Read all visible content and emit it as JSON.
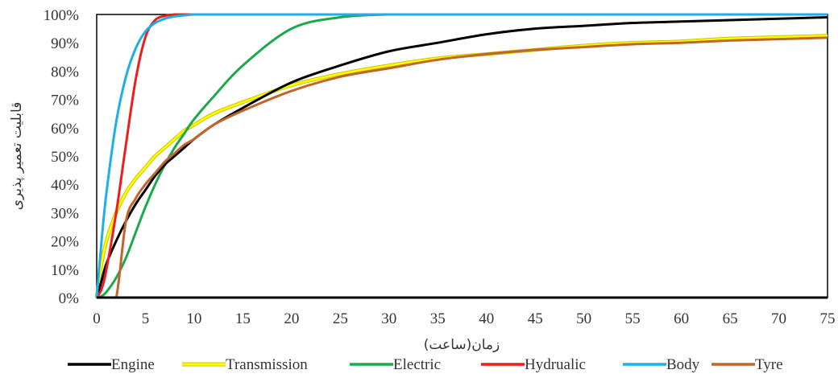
{
  "chart_data": {
    "type": "line",
    "title": "",
    "xlabel": "زمان(ساعت)",
    "ylabel": "قابلیت تعمیر پذیری",
    "xlim": [
      0,
      75
    ],
    "ylim": [
      0,
      100
    ],
    "x_ticks": [
      0,
      5,
      10,
      15,
      20,
      25,
      30,
      35,
      40,
      45,
      50,
      55,
      60,
      65,
      70,
      75
    ],
    "x_tick_labels": [
      "0",
      "5",
      "10",
      "15",
      "20",
      "25",
      "30",
      "35",
      "40",
      "45",
      "50",
      "55",
      "60",
      "65",
      "70",
      "75"
    ],
    "y_ticks": [
      0,
      10,
      20,
      30,
      40,
      50,
      60,
      70,
      80,
      90,
      100
    ],
    "y_tick_labels": [
      "0%",
      "10%",
      "20%",
      "30%",
      "40%",
      "50%",
      "60%",
      "70%",
      "80%",
      "90%",
      "100%"
    ],
    "grid": false,
    "legend_position": "bottom",
    "x": [
      0,
      0.5,
      1,
      2,
      3,
      4,
      5,
      6,
      7,
      8,
      9,
      10,
      12,
      15,
      20,
      25,
      30,
      35,
      40,
      45,
      50,
      55,
      60,
      65,
      70,
      75
    ],
    "series": [
      {
        "name": "Engine",
        "color": "#000000",
        "values": [
          0,
          6,
          12,
          20,
          27,
          33,
          38,
          43,
          47,
          50,
          53,
          56,
          61,
          67,
          76,
          82,
          87,
          90,
          93,
          95,
          96,
          97,
          97.5,
          98,
          98.5,
          99
        ]
      },
      {
        "name": "Transmission",
        "color": "#ffff00",
        "values": [
          0,
          12,
          20,
          30,
          37,
          42,
          46,
          50,
          53,
          56,
          59,
          61,
          65,
          69,
          75,
          79,
          82,
          84.5,
          86,
          87.5,
          89,
          90,
          90.5,
          91.5,
          92,
          92.5
        ]
      },
      {
        "name": "Electric",
        "color": "#1ea84c",
        "values": [
          0,
          0.5,
          2,
          7,
          14,
          23,
          32,
          40,
          47,
          53,
          58,
          63,
          71,
          82,
          95,
          99,
          100,
          100,
          100,
          100,
          100,
          100,
          100,
          100,
          100,
          100
        ]
      },
      {
        "name": "Hydrualic",
        "color": "#ee1c1c",
        "values": [
          0,
          3,
          10,
          30,
          54,
          77,
          92,
          98,
          99.5,
          100,
          100,
          100,
          100,
          100,
          100,
          100,
          100,
          100,
          100,
          100,
          100,
          100,
          100,
          100,
          100,
          100
        ]
      },
      {
        "name": "Body",
        "color": "#1eaee8",
        "values": [
          0,
          20,
          37,
          62,
          78,
          88,
          94,
          97,
          98.5,
          99.3,
          99.7,
          100,
          100,
          100,
          100,
          100,
          100,
          100,
          100,
          100,
          100,
          100,
          100,
          100,
          100,
          100
        ]
      },
      {
        "name": "Tyre",
        "color": "#c0652c",
        "values": [
          0,
          0,
          0,
          0,
          27,
          35,
          40,
          44,
          48,
          51,
          54,
          56,
          61,
          66,
          73,
          78,
          81,
          84,
          86,
          87.5,
          88.5,
          89.5,
          90,
          90.8,
          91.3,
          91.8
        ]
      }
    ]
  }
}
